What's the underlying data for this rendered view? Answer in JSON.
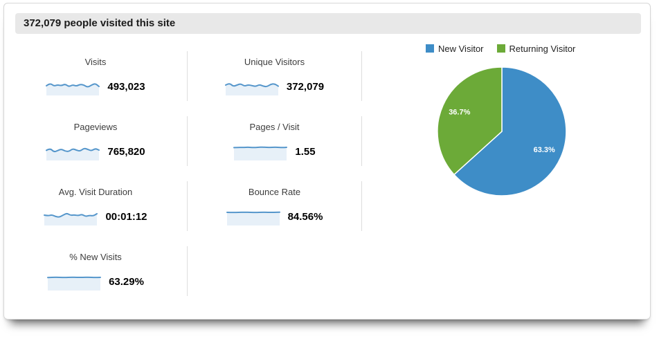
{
  "header": {
    "title_bind": "see chart_data.0.title"
  },
  "chart_data": [
    {
      "type": "table",
      "title": "372,079 people visited this site",
      "metrics": [
        {
          "label": "Visits",
          "value": "493,023",
          "spark": [
            0.55,
            0.75,
            0.52,
            0.62,
            0.55,
            0.68,
            0.48,
            0.62,
            0.52,
            0.66,
            0.6,
            0.44,
            0.6,
            0.72,
            0.5
          ]
        },
        {
          "label": "Unique Visitors",
          "value": "372,079",
          "spark": [
            0.6,
            0.76,
            0.5,
            0.6,
            0.7,
            0.52,
            0.62,
            0.56,
            0.5,
            0.64,
            0.52,
            0.48,
            0.66,
            0.7,
            0.52
          ]
        },
        {
          "label": "Pageviews",
          "value": "765,820",
          "spark": [
            0.58,
            0.74,
            0.46,
            0.56,
            0.68,
            0.52,
            0.5,
            0.7,
            0.6,
            0.52,
            0.74,
            0.66,
            0.54,
            0.72,
            0.6
          ]
        },
        {
          "label": "Pages / Visit",
          "value": "1.55",
          "spark": [
            0.78,
            0.8,
            0.79,
            0.81,
            0.78,
            0.8,
            0.82,
            0.79,
            0.8,
            0.81,
            0.78,
            0.8
          ]
        },
        {
          "label": "Avg. Visit Duration",
          "value": "00:01:12",
          "spark": [
            0.6,
            0.55,
            0.62,
            0.5,
            0.45,
            0.6,
            0.74,
            0.58,
            0.62,
            0.56,
            0.66,
            0.5,
            0.58,
            0.54,
            0.7
          ]
        },
        {
          "label": "Bounce Rate",
          "value": "84.56%",
          "spark": [
            0.8,
            0.79,
            0.8,
            0.81,
            0.8,
            0.79,
            0.81,
            0.8,
            0.8,
            0.81
          ]
        },
        {
          "label": "% New Visits",
          "value": "63.29%",
          "spark": [
            0.79,
            0.81,
            0.8,
            0.79,
            0.81,
            0.8,
            0.8,
            0.81,
            0.79,
            0.8
          ]
        }
      ]
    },
    {
      "type": "pie",
      "categories": [
        "New Visitor",
        "Returning Visitor"
      ],
      "values": [
        63.3,
        36.7
      ],
      "slice_labels": [
        "63.3%",
        "36.7%"
      ],
      "colors": [
        "#3e8dc7",
        "#6caa38"
      ],
      "legend_position": "top",
      "start_angle_deg": 0,
      "direction": "clockwise"
    }
  ]
}
